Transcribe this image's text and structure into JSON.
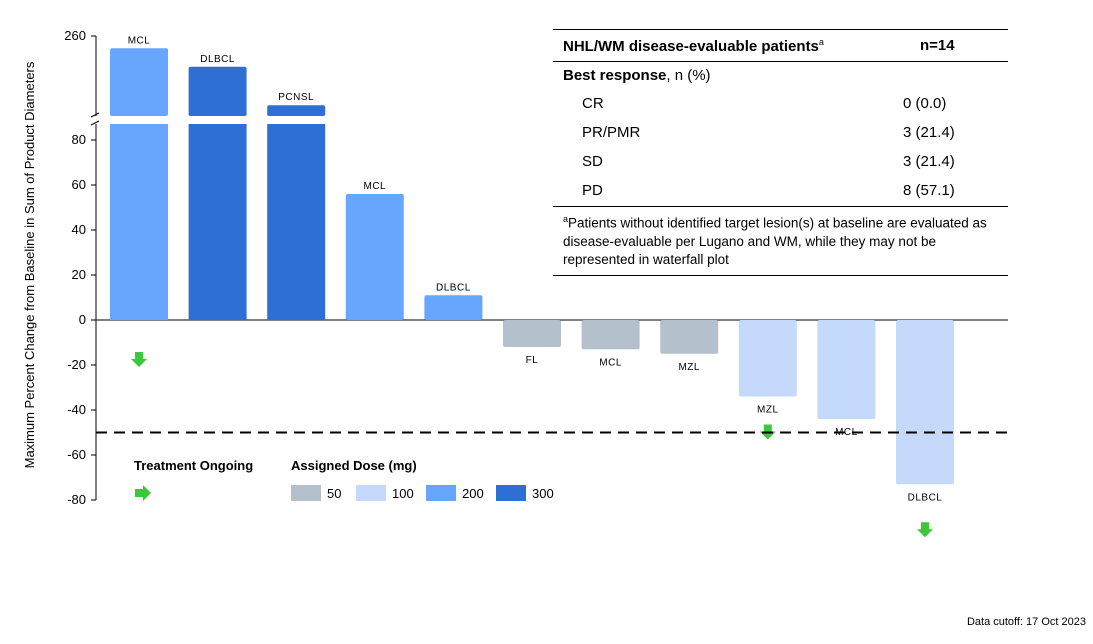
{
  "chart_data": {
    "type": "bar",
    "ylabel": "Maximum Percent Change from Baseline in Sum of Product Diameters",
    "yticks_lower": [
      "80",
      "60",
      "40",
      "20",
      "0",
      "-20",
      "-40",
      "-60",
      "-80"
    ],
    "ytick_upper": "260",
    "ylim": [
      -80,
      260
    ],
    "axis_break": true,
    "reference_line": -50,
    "bars": [
      {
        "label": "MCL",
        "value": 252,
        "dose": 200,
        "ongoing": true
      },
      {
        "label": "DLBCL",
        "value": 240,
        "dose": 300,
        "ongoing": false
      },
      {
        "label": "PCNSL",
        "value": 215,
        "dose": 300,
        "ongoing": false
      },
      {
        "label": "MCL",
        "value": 56,
        "dose": 200,
        "ongoing": false
      },
      {
        "label": "DLBCL",
        "value": 11,
        "dose": 200,
        "ongoing": false
      },
      {
        "label": "FL",
        "value": -12,
        "dose": 50,
        "ongoing": false
      },
      {
        "label": "MCL",
        "value": -13,
        "dose": 50,
        "ongoing": false
      },
      {
        "label": "MZL",
        "value": -15,
        "dose": 50,
        "ongoing": false
      },
      {
        "label": "MZL",
        "value": -34,
        "dose": 100,
        "ongoing": true
      },
      {
        "label": "MCL",
        "value": -44,
        "dose": 100,
        "ongoing": false
      },
      {
        "label": "DLBCL",
        "value": -73,
        "dose": 100,
        "ongoing": true
      }
    ]
  },
  "colors": {
    "dose_50": "#b4c0cc",
    "dose_100": "#c5dafa",
    "dose_200": "#66a6fc",
    "dose_300": "#2e6fd6",
    "arrow": "#3cc83c"
  },
  "legend": {
    "ongoing_title": "Treatment Ongoing",
    "dose_title": "Assigned Dose (mg)",
    "doses": [
      "50",
      "100",
      "200",
      "300"
    ]
  },
  "table": {
    "title": "NHL/WM disease-evaluable patients",
    "title_sup": "a",
    "n": "n=14",
    "best_response_bold": "Best response",
    "best_response_rest": ", n (%)",
    "rows": [
      {
        "label": "CR",
        "value": "0 (0.0)"
      },
      {
        "label": "PR/PMR",
        "value": "3 (21.4)"
      },
      {
        "label": "SD",
        "value": "3 (21.4)"
      },
      {
        "label": "PD",
        "value": "8 (57.1)"
      }
    ],
    "footnote_sup": "a",
    "footnote": "Patients without identified target lesion(s) at baseline are evaluated as disease-evaluable per Lugano and WM, while they may not be represented in waterfall plot"
  },
  "cutoff": "Data cutoff: 17 Oct 2023"
}
